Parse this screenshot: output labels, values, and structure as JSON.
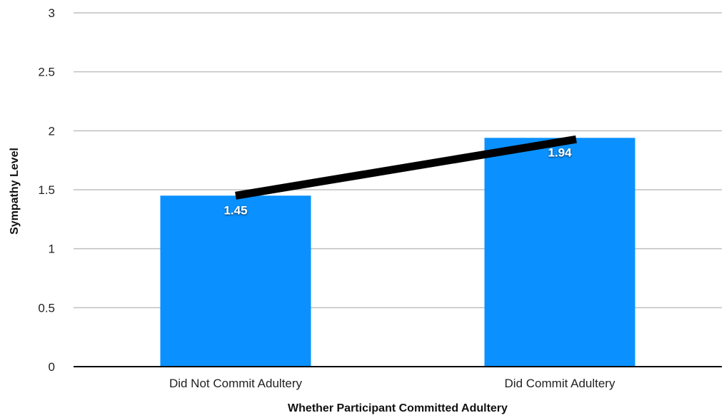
{
  "chart_data": {
    "type": "bar",
    "title": "",
    "xlabel": "Whether Participant Committed Adultery",
    "ylabel": "Sympathy Level",
    "categories": [
      "Did Not Commit Adultery",
      "Did Commit Adultery"
    ],
    "values": [
      1.45,
      1.94
    ],
    "data_labels": [
      "1.45",
      "1.94"
    ],
    "ylim": [
      0,
      3
    ],
    "yticks": [
      0,
      0.5,
      1,
      1.5,
      2,
      2.5,
      3
    ],
    "ytick_labels": [
      "0",
      "0.5",
      "1",
      "1.5",
      "2",
      "2.5",
      "3"
    ],
    "grid": true,
    "legend": "none",
    "trend_line": true,
    "colors": {
      "bar": "#0a91ff",
      "grid": "#bfbfbf",
      "axis": "#000000",
      "trend_line": "#000000"
    }
  }
}
